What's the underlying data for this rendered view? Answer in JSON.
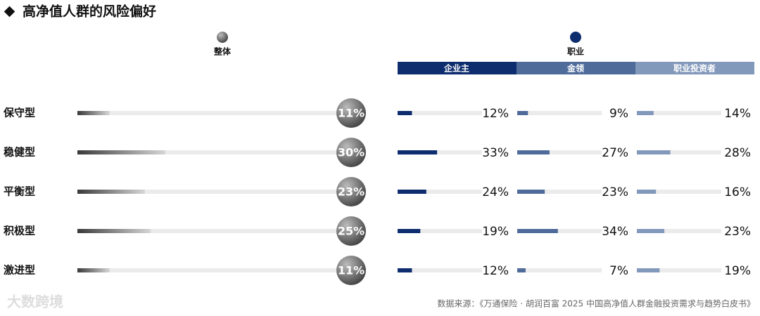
{
  "chart_data": {
    "type": "bar",
    "title": "高净值人群的风险偏好",
    "categories": [
      "保守型",
      "稳健型",
      "平衡型",
      "积极型",
      "激进型"
    ],
    "overall": {
      "label": "整体",
      "values": [
        11,
        30,
        23,
        25,
        11
      ],
      "value_labels": [
        "11%",
        "30%",
        "23%",
        "25%",
        "11%"
      ]
    },
    "occupation": {
      "label": "职业",
      "series": [
        {
          "name": "企业主",
          "color": "#0e2d6e",
          "values": [
            12,
            33,
            24,
            19,
            12
          ],
          "value_labels": [
            "12%",
            "33%",
            "24%",
            "19%",
            "12%"
          ]
        },
        {
          "name": "金领",
          "color": "#4f6b9a",
          "values": [
            9,
            27,
            23,
            34,
            7
          ],
          "value_labels": [
            "9%",
            "27%",
            "23%",
            "34%",
            "7%"
          ]
        },
        {
          "name": "职业投资者",
          "color": "#8399bb",
          "values": [
            14,
            28,
            16,
            23,
            19
          ],
          "value_labels": [
            "14%",
            "28%",
            "16%",
            "23%",
            "19%"
          ]
        }
      ]
    },
    "source": "数据来源：《万通保险 · 胡润百富 2025 中国高净值人群金融投资需求与趋势白皮书》",
    "watermark": "大数跨境"
  }
}
